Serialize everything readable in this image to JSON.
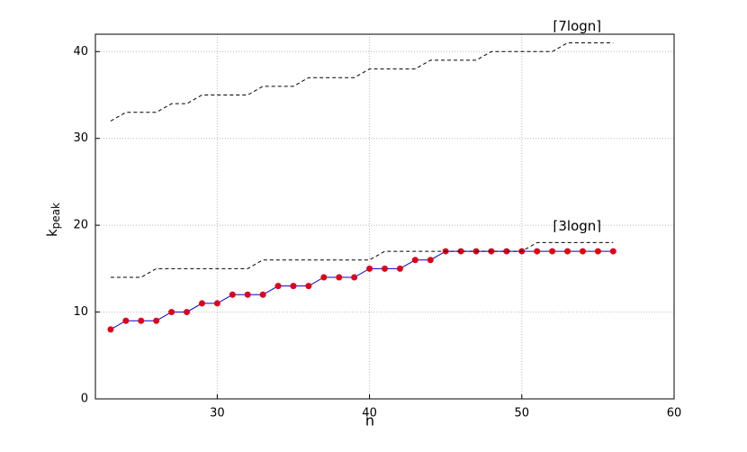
{
  "chart_data": {
    "type": "line",
    "x_label": "n",
    "y_label": "k",
    "y_label_sub": "peak",
    "x": [
      23,
      24,
      25,
      26,
      27,
      28,
      29,
      30,
      31,
      32,
      33,
      34,
      35,
      36,
      37,
      38,
      39,
      40,
      41,
      42,
      43,
      44,
      45,
      46,
      47,
      48,
      49,
      50,
      51,
      52,
      53,
      54,
      55,
      56
    ],
    "series": [
      {
        "color": "#0000cc",
        "marker_color": "#e0001a",
        "markers": true,
        "dashed": false,
        "values": [
          8,
          9,
          9,
          9,
          10,
          10,
          11,
          11,
          12,
          12,
          12,
          13,
          13,
          13,
          14,
          14,
          14,
          15,
          15,
          15,
          16,
          16,
          17,
          17,
          17,
          17,
          17,
          17,
          17,
          17,
          17,
          17,
          17,
          17
        ]
      },
      {
        "color": "#000000",
        "markers": false,
        "dashed": true,
        "label": "⌈3logn⌉",
        "values": [
          14,
          14,
          14,
          15,
          15,
          15,
          15,
          15,
          15,
          15,
          16,
          16,
          16,
          16,
          16,
          16,
          16,
          16,
          17,
          17,
          17,
          17,
          17,
          17,
          17,
          17,
          17,
          17,
          18,
          18,
          18,
          18,
          18,
          18
        ]
      },
      {
        "color": "#000000",
        "markers": false,
        "dashed": true,
        "label": "⌈7logn⌉",
        "values": [
          32,
          33,
          33,
          33,
          34,
          34,
          35,
          35,
          35,
          35,
          36,
          36,
          36,
          37,
          37,
          37,
          37,
          38,
          38,
          38,
          38,
          39,
          39,
          39,
          39,
          40,
          40,
          40,
          40,
          40,
          41,
          41,
          41,
          41
        ]
      }
    ],
    "xlim": [
      22,
      60
    ],
    "ylim": [
      0,
      42
    ],
    "xticks": [
      30,
      40,
      50,
      60
    ],
    "yticks": [
      0,
      10,
      20,
      30,
      40
    ],
    "grid": true
  }
}
